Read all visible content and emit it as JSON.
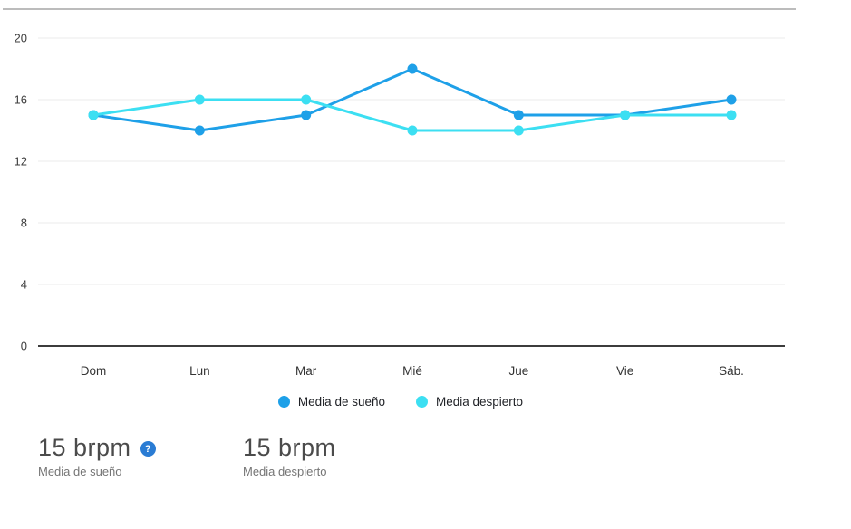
{
  "chart_data": {
    "type": "line",
    "categories": [
      "Dom",
      "Lun",
      "Mar",
      "Mié",
      "Jue",
      "Vie",
      "Sáb."
    ],
    "series": [
      {
        "name": "Media de sueño",
        "color": "#1ea0e8",
        "values": [
          15,
          14,
          15,
          18,
          15,
          15,
          16
        ]
      },
      {
        "name": "Media despierto",
        "color": "#3cdff2",
        "values": [
          15,
          16,
          16,
          14,
          14,
          15,
          15
        ]
      }
    ],
    "title": "",
    "xlabel": "",
    "ylabel": "",
    "unit": "brpm",
    "ylim": [
      0,
      20
    ],
    "yticks": [
      0,
      4,
      8,
      12,
      16,
      20
    ],
    "grid": true,
    "legend_position": "bottom"
  },
  "summary": {
    "sleep": {
      "value": "15 brpm",
      "label": "Media de sueño",
      "help_glyph": "?"
    },
    "awake": {
      "value": "15 brpm",
      "label": "Media despierto"
    }
  },
  "colors": {
    "grid": "#ebebeb",
    "axis": "#3c3c3c",
    "top_border": "#bcbcbc",
    "tick_label": "#3d3d3d",
    "x_label": "#333333",
    "stat_value": "#4b4b4b",
    "stat_label": "#757575",
    "help_icon_bg": "#2a7cd4"
  }
}
